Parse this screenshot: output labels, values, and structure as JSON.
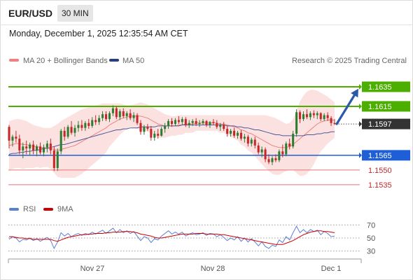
{
  "header": {
    "pair": "EUR/USD",
    "timeframe": "30 MIN",
    "datetime": "Monday, December 1, 2025 12:35:54 AM CET"
  },
  "legend": {
    "bb_label": "MA 20 + Bollinger Bands",
    "ma50_label": "MA 50",
    "credit": "Research © 2025 Trading Central"
  },
  "colors": {
    "up": "#2e7d32",
    "down": "#c62828",
    "bb_fill": "#fcdede",
    "ma20": "#f08080",
    "ma50": "#4a5a9a",
    "resistance": "#4caf00",
    "support": "#1e5fd8",
    "minor_support": "#e57373",
    "current": "#333333",
    "rsi": "#5b7fd6",
    "rsi_ma": "#cc0000",
    "arrow": "#2a5aa8"
  },
  "chart_data": [
    {
      "type": "candlestick",
      "title": "",
      "ylim": [
        1.1522,
        1.1655
      ],
      "x_ticks": [
        "Nov 27",
        "Nov 28",
        "Dec 1"
      ],
      "levels": [
        {
          "label": "1.1635",
          "value": 1.1635,
          "kind": "resistance"
        },
        {
          "label": "1.1615",
          "value": 1.1615,
          "kind": "resistance"
        },
        {
          "label": "1.1597",
          "value": 1.1597,
          "kind": "current"
        },
        {
          "label": "1.1565",
          "value": 1.1565,
          "kind": "support"
        },
        {
          "label": "1.1550",
          "value": 1.155,
          "kind": "minor_support"
        },
        {
          "label": "1.1535",
          "value": 1.1535,
          "kind": "minor_support"
        }
      ],
      "forecast_arrow": {
        "from": 1.1597,
        "to": 1.1633
      },
      "ohlc": [
        [
          1.1594,
          1.1596,
          1.1572,
          1.158
        ],
        [
          1.158,
          1.1586,
          1.1574,
          1.1584
        ],
        [
          1.1584,
          1.159,
          1.1578,
          1.1582
        ],
        [
          1.1582,
          1.1586,
          1.1566,
          1.157
        ],
        [
          1.157,
          1.1578,
          1.1562,
          1.1574
        ],
        [
          1.1574,
          1.158,
          1.1566,
          1.1572
        ],
        [
          1.1572,
          1.1578,
          1.1565,
          1.1576
        ],
        [
          1.1576,
          1.158,
          1.1566,
          1.157
        ],
        [
          1.157,
          1.1576,
          1.1564,
          1.1574
        ],
        [
          1.1574,
          1.1578,
          1.1566,
          1.1568
        ],
        [
          1.1568,
          1.1576,
          1.1564,
          1.1573
        ],
        [
          1.1573,
          1.158,
          1.1568,
          1.1577
        ],
        [
          1.1577,
          1.1582,
          1.1566,
          1.157
        ],
        [
          1.157,
          1.1574,
          1.1549,
          1.1552
        ],
        [
          1.1552,
          1.1572,
          1.1549,
          1.1569
        ],
        [
          1.1569,
          1.1592,
          1.1566,
          1.159
        ],
        [
          1.159,
          1.1594,
          1.158,
          1.1584
        ],
        [
          1.1584,
          1.1596,
          1.1582,
          1.1594
        ],
        [
          1.1594,
          1.16,
          1.1586,
          1.1588
        ],
        [
          1.1588,
          1.1596,
          1.1584,
          1.1593
        ],
        [
          1.1593,
          1.16,
          1.1589,
          1.1596
        ],
        [
          1.1596,
          1.1601,
          1.159,
          1.1593
        ],
        [
          1.1593,
          1.16,
          1.159,
          1.1598
        ],
        [
          1.1598,
          1.1602,
          1.1592,
          1.1595
        ],
        [
          1.1595,
          1.1604,
          1.1593,
          1.1601
        ],
        [
          1.1601,
          1.1606,
          1.1596,
          1.1599
        ],
        [
          1.1599,
          1.1606,
          1.1596,
          1.1603
        ],
        [
          1.1603,
          1.161,
          1.16,
          1.1607
        ],
        [
          1.1607,
          1.161,
          1.16,
          1.1602
        ],
        [
          1.1602,
          1.161,
          1.1599,
          1.1608
        ],
        [
          1.1608,
          1.1616,
          1.1605,
          1.1613
        ],
        [
          1.1613,
          1.1615,
          1.1602,
          1.1604
        ],
        [
          1.1604,
          1.1612,
          1.1601,
          1.161
        ],
        [
          1.161,
          1.1613,
          1.1603,
          1.1605
        ],
        [
          1.1605,
          1.161,
          1.1601,
          1.1608
        ],
        [
          1.1608,
          1.1612,
          1.1601,
          1.1603
        ],
        [
          1.1603,
          1.1609,
          1.1599,
          1.1606
        ],
        [
          1.1606,
          1.1608,
          1.1596,
          1.1598
        ],
        [
          1.1598,
          1.1601,
          1.1586,
          1.1589
        ],
        [
          1.1589,
          1.1596,
          1.1586,
          1.1594
        ],
        [
          1.1594,
          1.1597,
          1.159,
          1.1592
        ],
        [
          1.1592,
          1.1595,
          1.158,
          1.1583
        ],
        [
          1.1583,
          1.159,
          1.158,
          1.1587
        ],
        [
          1.1587,
          1.1592,
          1.1582,
          1.1585
        ],
        [
          1.1585,
          1.1594,
          1.1584,
          1.1592
        ],
        [
          1.1592,
          1.1598,
          1.1588,
          1.1595
        ],
        [
          1.1595,
          1.1602,
          1.1592,
          1.16
        ],
        [
          1.16,
          1.1603,
          1.1594,
          1.1597
        ],
        [
          1.1597,
          1.1603,
          1.1595,
          1.1601
        ],
        [
          1.1601,
          1.1605,
          1.1597,
          1.1599
        ],
        [
          1.1599,
          1.1604,
          1.1596,
          1.1602
        ],
        [
          1.1602,
          1.1604,
          1.1594,
          1.1596
        ],
        [
          1.1596,
          1.1601,
          1.1593,
          1.1598
        ],
        [
          1.1598,
          1.1602,
          1.1595,
          1.16
        ],
        [
          1.16,
          1.1603,
          1.1595,
          1.1597
        ],
        [
          1.1597,
          1.1601,
          1.1594,
          1.1598
        ],
        [
          1.1598,
          1.1602,
          1.1596,
          1.16
        ],
        [
          1.16,
          1.1601,
          1.1594,
          1.1596
        ],
        [
          1.1596,
          1.16,
          1.1593,
          1.1599
        ],
        [
          1.1599,
          1.1602,
          1.1596,
          1.1598
        ],
        [
          1.1598,
          1.1601,
          1.1592,
          1.1594
        ],
        [
          1.1594,
          1.1598,
          1.159,
          1.1596
        ],
        [
          1.1596,
          1.1599,
          1.159,
          1.1592
        ],
        [
          1.1592,
          1.1595,
          1.1584,
          1.1587
        ],
        [
          1.1587,
          1.1592,
          1.1584,
          1.159
        ],
        [
          1.159,
          1.1593,
          1.1583,
          1.1585
        ],
        [
          1.1585,
          1.159,
          1.1582,
          1.1588
        ],
        [
          1.1588,
          1.1591,
          1.158,
          1.1582
        ],
        [
          1.1582,
          1.1587,
          1.1578,
          1.1584
        ],
        [
          1.1584,
          1.1586,
          1.1574,
          1.1577
        ],
        [
          1.1577,
          1.1583,
          1.1574,
          1.1581
        ],
        [
          1.1581,
          1.1584,
          1.1572,
          1.1575
        ],
        [
          1.1575,
          1.1578,
          1.1566,
          1.1568
        ],
        [
          1.1568,
          1.1574,
          1.1563,
          1.1571
        ],
        [
          1.1571,
          1.1573,
          1.1558,
          1.1561
        ],
        [
          1.1561,
          1.1566,
          1.1556,
          1.1558
        ],
        [
          1.1558,
          1.1564,
          1.1555,
          1.1562
        ],
        [
          1.1562,
          1.1566,
          1.1558,
          1.156
        ],
        [
          1.156,
          1.1571,
          1.1558,
          1.1569
        ],
        [
          1.1569,
          1.1576,
          1.1563,
          1.1566
        ],
        [
          1.1566,
          1.1579,
          1.1564,
          1.1577
        ],
        [
          1.1577,
          1.1582,
          1.1571,
          1.1574
        ],
        [
          1.1574,
          1.159,
          1.1572,
          1.1587
        ],
        [
          1.1587,
          1.1612,
          1.1584,
          1.1609
        ],
        [
          1.1609,
          1.1611,
          1.1598,
          1.1602
        ],
        [
          1.1602,
          1.161,
          1.16,
          1.1607
        ],
        [
          1.1607,
          1.1612,
          1.1602,
          1.1604
        ],
        [
          1.1604,
          1.161,
          1.1601,
          1.1608
        ],
        [
          1.1608,
          1.1611,
          1.1603,
          1.1606
        ],
        [
          1.1606,
          1.161,
          1.1602,
          1.1608
        ],
        [
          1.1608,
          1.1609,
          1.16,
          1.1602
        ],
        [
          1.1602,
          1.1608,
          1.16,
          1.1606
        ],
        [
          1.1606,
          1.1609,
          1.16,
          1.1603
        ],
        [
          1.1603,
          1.1605,
          1.1595,
          1.1598
        ],
        [
          1.1598,
          1.1602,
          1.1596,
          1.1597
        ]
      ],
      "ma20": [
        1.1575,
        1.1576,
        1.1577,
        1.1577,
        1.1576,
        1.1576,
        1.1575,
        1.1574,
        1.1574,
        1.1573,
        1.1573,
        1.1573,
        1.1572,
        1.1571,
        1.157,
        1.1571,
        1.1572,
        1.1573,
        1.1574,
        1.1575,
        1.1577,
        1.1579,
        1.1581,
        1.1583,
        1.1585,
        1.1587,
        1.1589,
        1.1591,
        1.1593,
        1.1596,
        1.1598,
        1.16,
        1.1602,
        1.1603,
        1.1604,
        1.1605,
        1.1605,
        1.1605,
        1.1605,
        1.1604,
        1.1603,
        1.1601,
        1.1599,
        1.1597,
        1.1596,
        1.1595,
        1.1595,
        1.1595,
        1.1595,
        1.1596,
        1.1596,
        1.1597,
        1.1597,
        1.1597,
        1.1598,
        1.1598,
        1.1598,
        1.1598,
        1.1598,
        1.1598,
        1.1598,
        1.1597,
        1.1597,
        1.1596,
        1.1595,
        1.1594,
        1.1593,
        1.1591,
        1.159,
        1.1588,
        1.1587,
        1.1585,
        1.1583,
        1.1581,
        1.1579,
        1.1577,
        1.1575,
        1.1574,
        1.1573,
        1.1573,
        1.1573,
        1.1574,
        1.1576,
        1.1579,
        1.1582,
        1.1585,
        1.1588,
        1.1591,
        1.1594,
        1.1597,
        1.1599,
        1.16,
        1.1601,
        1.1601,
        1.1601
      ],
      "bb_upper": [
        1.16,
        1.1601,
        1.1602,
        1.1602,
        1.1601,
        1.16,
        1.1598,
        1.1596,
        1.1595,
        1.1594,
        1.1593,
        1.1593,
        1.1593,
        1.1595,
        1.1597,
        1.16,
        1.1602,
        1.1604,
        1.1606,
        1.1608,
        1.161,
        1.1612,
        1.1613,
        1.1614,
        1.1615,
        1.1616,
        1.1617,
        1.1618,
        1.1618,
        1.1618,
        1.1618,
        1.1618,
        1.1618,
        1.1617,
        1.1616,
        1.1616,
        1.1617,
        1.1618,
        1.1619,
        1.1618,
        1.1617,
        1.1615,
        1.1613,
        1.1611,
        1.1609,
        1.1607,
        1.1606,
        1.1605,
        1.1605,
        1.1606,
        1.1606,
        1.1606,
        1.1606,
        1.1606,
        1.1606,
        1.1606,
        1.1606,
        1.1606,
        1.1606,
        1.1606,
        1.1606,
        1.1606,
        1.1606,
        1.1606,
        1.1606,
        1.1606,
        1.1606,
        1.1606,
        1.1606,
        1.1606,
        1.1606,
        1.1606,
        1.1606,
        1.1606,
        1.1606,
        1.1605,
        1.1604,
        1.1603,
        1.1601,
        1.1599,
        1.1597,
        1.1598,
        1.1602,
        1.1611,
        1.162,
        1.1626,
        1.163,
        1.1632,
        1.1632,
        1.1631,
        1.1629,
        1.1627,
        1.1625,
        1.1622,
        1.1619
      ],
      "bb_lower": [
        1.155,
        1.1551,
        1.1552,
        1.1552,
        1.1551,
        1.1552,
        1.1552,
        1.1552,
        1.1553,
        1.1552,
        1.1553,
        1.1553,
        1.1551,
        1.1547,
        1.1543,
        1.1542,
        1.1542,
        1.1542,
        1.1542,
        1.1542,
        1.1544,
        1.1546,
        1.1549,
        1.1552,
        1.1555,
        1.1558,
        1.1561,
        1.1564,
        1.1568,
        1.1574,
        1.1578,
        1.1582,
        1.1586,
        1.1589,
        1.1592,
        1.1594,
        1.1593,
        1.1592,
        1.1591,
        1.159,
        1.1589,
        1.1587,
        1.1585,
        1.1583,
        1.1583,
        1.1583,
        1.1584,
        1.1585,
        1.1585,
        1.1586,
        1.1586,
        1.1588,
        1.1588,
        1.1588,
        1.159,
        1.159,
        1.159,
        1.159,
        1.159,
        1.159,
        1.159,
        1.1588,
        1.1588,
        1.1586,
        1.1584,
        1.1582,
        1.158,
        1.1576,
        1.1574,
        1.157,
        1.1568,
        1.1564,
        1.156,
        1.1556,
        1.1552,
        1.1549,
        1.1546,
        1.1545,
        1.1545,
        1.1547,
        1.1549,
        1.155,
        1.155,
        1.1547,
        1.1544,
        1.1544,
        1.1546,
        1.155,
        1.1556,
        1.1563,
        1.1569,
        1.1573,
        1.1577,
        1.158,
        1.1583
      ],
      "ma50": [
        1.1566,
        1.1567,
        1.1567,
        1.1568,
        1.1568,
        1.1569,
        1.1569,
        1.157,
        1.157,
        1.1571,
        1.1572,
        1.1572,
        1.1573,
        1.1574,
        1.1575,
        1.1576,
        1.1576,
        1.1577,
        1.1578,
        1.1579,
        1.158,
        1.1581,
        1.1582,
        1.1583,
        1.1584,
        1.1585,
        1.1586,
        1.1587,
        1.1588,
        1.1589,
        1.159,
        1.1591,
        1.1591,
        1.1592,
        1.1592,
        1.1593,
        1.1593,
        1.1593,
        1.1594,
        1.1594,
        1.1594,
        1.1594,
        1.1594,
        1.1595,
        1.1595,
        1.1595,
        1.1595,
        1.1595,
        1.1595,
        1.1595,
        1.1596,
        1.1596,
        1.1596,
        1.1596,
        1.1596,
        1.1596,
        1.1596,
        1.1596,
        1.1596,
        1.1596,
        1.1596,
        1.1596,
        1.1596,
        1.1595,
        1.1595,
        1.1595,
        1.1594,
        1.1594,
        1.1593,
        1.1593,
        1.1592,
        1.1591,
        1.1591,
        1.159,
        1.1589,
        1.1588,
        1.1587,
        1.1586,
        1.1586,
        1.1585,
        1.1585,
        1.1585,
        1.1585,
        1.1585,
        1.1585,
        1.1585,
        1.1586,
        1.1586,
        1.1586,
        1.1587,
        1.1587,
        1.1588,
        1.1588,
        1.1589,
        1.1589
      ]
    },
    {
      "type": "line",
      "title": "",
      "series": [
        {
          "name": "RSI",
          "color": "#5b7fd6"
        },
        {
          "name": "9MA",
          "color": "#cc0000"
        }
      ],
      "ylim": [
        20,
        80
      ],
      "y_ticks": [
        70,
        50,
        30
      ],
      "rsi": [
        48,
        52,
        50,
        44,
        48,
        47,
        50,
        46,
        49,
        45,
        48,
        51,
        46,
        34,
        44,
        58,
        53,
        57,
        52,
        55,
        57,
        54,
        57,
        55,
        59,
        56,
        59,
        62,
        57,
        61,
        65,
        58,
        63,
        58,
        61,
        57,
        60,
        53,
        46,
        52,
        50,
        43,
        49,
        47,
        53,
        57,
        61,
        56,
        59,
        56,
        59,
        53,
        56,
        58,
        55,
        56,
        58,
        54,
        57,
        56,
        52,
        55,
        51,
        46,
        50,
        47,
        52,
        45,
        50,
        44,
        49,
        44,
        38,
        44,
        37,
        34,
        39,
        37,
        47,
        43,
        52,
        47,
        58,
        68,
        58,
        63,
        58,
        63,
        60,
        62,
        55,
        60,
        57,
        52,
        53
      ],
      "rsi_ma": [
        52,
        52,
        51,
        50,
        50,
        49,
        49,
        48,
        48,
        48,
        48,
        48,
        48,
        46,
        45,
        47,
        49,
        51,
        52,
        53,
        54,
        55,
        55,
        56,
        56,
        57,
        57,
        57,
        58,
        58,
        59,
        59,
        59,
        60,
        60,
        60,
        59,
        58,
        56,
        55,
        54,
        53,
        51,
        50,
        50,
        51,
        52,
        53,
        54,
        55,
        56,
        56,
        56,
        56,
        57,
        57,
        57,
        56,
        56,
        56,
        56,
        55,
        55,
        54,
        53,
        52,
        51,
        50,
        49,
        48,
        47,
        46,
        45,
        44,
        43,
        42,
        41,
        40,
        40,
        40,
        42,
        44,
        46,
        49,
        52,
        55,
        57,
        59,
        60,
        61,
        61,
        60,
        60,
        59,
        58
      ]
    }
  ]
}
